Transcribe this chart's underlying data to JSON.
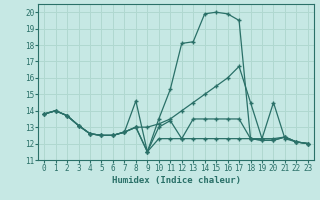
{
  "xlabel": "Humidex (Indice chaleur)",
  "xlim": [
    -0.5,
    23.5
  ],
  "ylim": [
    11,
    20.5
  ],
  "yticks": [
    11,
    12,
    13,
    14,
    15,
    16,
    17,
    18,
    19,
    20
  ],
  "xticks": [
    0,
    1,
    2,
    3,
    4,
    5,
    6,
    7,
    8,
    9,
    10,
    11,
    12,
    13,
    14,
    15,
    16,
    17,
    18,
    19,
    20,
    21,
    22,
    23
  ],
  "bg_color": "#c6e8e4",
  "line_color": "#2a7068",
  "grid_color": "#b0d8d0",
  "lines": [
    {
      "x": [
        0,
        1,
        2,
        3,
        4,
        5,
        6,
        7,
        8,
        9,
        10,
        11,
        12,
        13,
        14,
        15,
        16,
        17,
        18,
        19,
        20,
        21,
        22,
        23
      ],
      "y": [
        13.8,
        14.0,
        13.7,
        13.1,
        12.6,
        12.5,
        12.5,
        12.7,
        13.0,
        11.5,
        13.5,
        15.3,
        18.1,
        18.2,
        19.9,
        20.0,
        19.9,
        19.5,
        12.3,
        12.2,
        12.2,
        12.4,
        12.1,
        12.0
      ]
    },
    {
      "x": [
        0,
        1,
        2,
        3,
        4,
        5,
        6,
        7,
        8,
        9,
        10,
        11,
        12,
        13,
        14,
        15,
        16,
        17,
        18,
        19,
        20,
        21,
        22,
        23
      ],
      "y": [
        13.8,
        14.0,
        13.7,
        13.1,
        12.6,
        12.5,
        12.5,
        12.7,
        13.0,
        13.0,
        13.2,
        13.5,
        14.0,
        14.5,
        15.0,
        15.5,
        16.0,
        16.7,
        14.5,
        12.3,
        12.3,
        12.4,
        12.1,
        12.0
      ]
    },
    {
      "x": [
        0,
        1,
        2,
        3,
        4,
        5,
        6,
        7,
        8,
        9,
        10,
        11,
        12,
        13,
        14,
        15,
        16,
        17,
        18,
        19,
        20,
        21,
        22,
        23
      ],
      "y": [
        13.8,
        14.0,
        13.7,
        13.1,
        12.6,
        12.5,
        12.5,
        12.7,
        13.0,
        11.5,
        12.3,
        12.3,
        12.3,
        12.3,
        12.3,
        12.3,
        12.3,
        12.3,
        12.3,
        12.3,
        14.5,
        12.3,
        12.1,
        12.0
      ]
    },
    {
      "x": [
        0,
        1,
        2,
        3,
        4,
        5,
        6,
        7,
        8,
        9,
        10,
        11,
        12,
        13,
        14,
        15,
        16,
        17,
        18,
        19,
        20,
        21,
        22,
        23
      ],
      "y": [
        13.8,
        14.0,
        13.7,
        13.1,
        12.6,
        12.5,
        12.5,
        12.7,
        14.6,
        11.5,
        13.0,
        13.4,
        12.3,
        13.5,
        13.5,
        13.5,
        13.5,
        13.5,
        12.3,
        12.2,
        12.2,
        12.4,
        12.1,
        12.0
      ]
    }
  ]
}
